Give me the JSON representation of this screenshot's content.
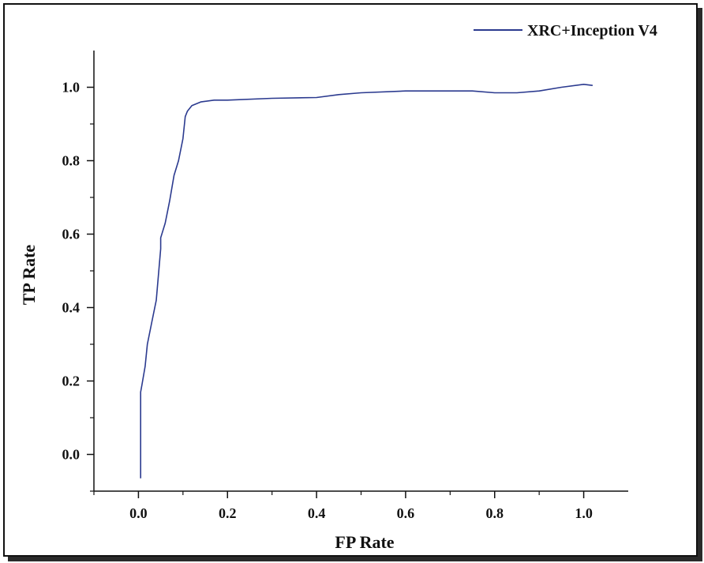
{
  "chart_data": {
    "type": "line",
    "title": "",
    "xlabel": "FP Rate",
    "ylabel": "TP Rate",
    "xlim": [
      -0.1,
      1.1
    ],
    "ylim": [
      -0.1,
      1.1
    ],
    "xticks": [
      0.0,
      0.2,
      0.4,
      0.6,
      0.8,
      1.0
    ],
    "xtick_labels": [
      "0.0",
      "0.2",
      "0.4",
      "0.6",
      "0.8",
      "1.0"
    ],
    "yticks": [
      0.0,
      0.2,
      0.4,
      0.6,
      0.8,
      1.0
    ],
    "ytick_labels": [
      "0.0",
      "0.2",
      "0.4",
      "0.6",
      "0.8",
      "1.0"
    ],
    "grid": false,
    "legend_position": "top-right",
    "series": [
      {
        "name": "XRC+Inception V4",
        "color": "#2b3a8f",
        "x": [
          0.005,
          0.005,
          0.008,
          0.015,
          0.02,
          0.03,
          0.04,
          0.05,
          0.05,
          0.06,
          0.07,
          0.08,
          0.09,
          0.1,
          0.105,
          0.11,
          0.12,
          0.14,
          0.17,
          0.2,
          0.3,
          0.4,
          0.45,
          0.5,
          0.6,
          0.7,
          0.75,
          0.8,
          0.85,
          0.9,
          0.95,
          1.0,
          1.02
        ],
        "y": [
          -0.065,
          0.17,
          0.19,
          0.24,
          0.3,
          0.36,
          0.42,
          0.56,
          0.59,
          0.63,
          0.69,
          0.76,
          0.8,
          0.86,
          0.92,
          0.935,
          0.95,
          0.96,
          0.965,
          0.965,
          0.97,
          0.972,
          0.98,
          0.985,
          0.99,
          0.99,
          0.99,
          0.985,
          0.985,
          0.99,
          1.0,
          1.008,
          1.005
        ]
      }
    ]
  }
}
